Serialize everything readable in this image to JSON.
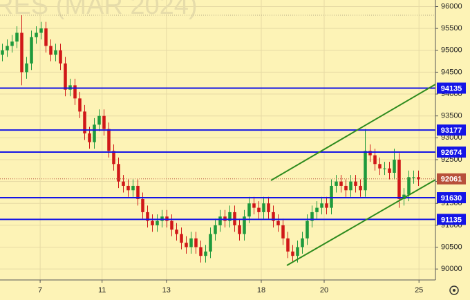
{
  "chart_data": {
    "type": "candlestick",
    "watermark": "RES (MAR 2024)",
    "xlim": [
      0,
      90
    ],
    "xticks": [
      {
        "value": 8.3,
        "label": "7"
      },
      {
        "value": 21.1,
        "label": "11"
      },
      {
        "value": 34.4,
        "label": "13"
      },
      {
        "value": 54,
        "label": "18"
      },
      {
        "value": 67,
        "label": "20"
      },
      {
        "value": 86.6,
        "label": "25"
      }
    ],
    "ylim": [
      89750,
      96150
    ],
    "yticks": [
      90000,
      90500,
      91000,
      91500,
      92000,
      92500,
      93000,
      93500,
      94000,
      94500,
      95000,
      95500,
      96000
    ],
    "grid": true,
    "up_color": "#1e9a3c",
    "down_color": "#d01818",
    "level_color": "#1414e6",
    "last_color": "#b8503a",
    "levels": [
      94135,
      93177,
      92674,
      91630,
      91135
    ],
    "last_price": 92061,
    "open": [
      94900,
      95000,
      95100,
      95200,
      95400,
      94500,
      94700,
      95300,
      95400,
      95500,
      95100,
      94900,
      95000,
      94700,
      94100,
      94200,
      93900,
      93600,
      93100,
      92900,
      93300,
      93500,
      93200,
      92700,
      92400,
      92000,
      91900,
      91800,
      91900,
      91600,
      91300,
      91100,
      91000,
      91100,
      91200,
      91100,
      90900,
      90800,
      90600,
      90500,
      90700,
      90500,
      90300,
      90400,
      90800,
      91000,
      91200,
      91100,
      91300,
      91000,
      90800,
      91200,
      91500,
      91400,
      91300,
      91500,
      91300,
      91100,
      91000,
      90700,
      90400,
      90300,
      90500,
      90700,
      91100,
      91300,
      91400,
      91500,
      91400,
      91900,
      92000,
      91900,
      91800,
      92000,
      91900,
      91800,
      92700,
      92600,
      92400,
      92300,
      92300,
      92200,
      92500,
      91600,
      91700,
      92100,
      92100
    ],
    "high": [
      95150,
      95250,
      95350,
      95550,
      95800,
      94850,
      95450,
      95550,
      95650,
      95650,
      95250,
      95150,
      95150,
      94850,
      94350,
      94350,
      94050,
      93750,
      93250,
      93450,
      93650,
      93650,
      93350,
      92850,
      92550,
      92150,
      92050,
      92050,
      92050,
      91750,
      91450,
      91250,
      91250,
      91350,
      91350,
      91250,
      91050,
      90950,
      90750,
      90850,
      90850,
      90650,
      90550,
      90950,
      91150,
      91350,
      91350,
      91450,
      91450,
      91150,
      91350,
      91650,
      91650,
      91550,
      91650,
      91650,
      91450,
      91250,
      91150,
      90850,
      90550,
      90650,
      90850,
      91250,
      91450,
      91550,
      91650,
      91650,
      92050,
      92150,
      92150,
      92050,
      92150,
      92150,
      92050,
      93200,
      92850,
      92750,
      92550,
      92450,
      92450,
      92750,
      92650,
      91850,
      92250,
      92250,
      92250
    ],
    "low": [
      94750,
      94850,
      94950,
      95050,
      94200,
      94350,
      94550,
      95150,
      95250,
      94950,
      94750,
      94750,
      94550,
      93950,
      93950,
      93750,
      93450,
      92950,
      92750,
      92750,
      93150,
      93050,
      92550,
      92250,
      91850,
      91750,
      91650,
      91650,
      91450,
      91150,
      90950,
      90850,
      90850,
      90950,
      90950,
      90750,
      90650,
      90450,
      90350,
      90350,
      90350,
      90150,
      90150,
      90250,
      90650,
      90850,
      90950,
      90950,
      90850,
      90650,
      90650,
      91050,
      91250,
      91150,
      91150,
      91150,
      90950,
      90850,
      90550,
      90250,
      90150,
      90150,
      90350,
      90550,
      90950,
      91150,
      91250,
      91250,
      91250,
      91750,
      91750,
      91650,
      91650,
      91750,
      91650,
      91650,
      92450,
      92250,
      92150,
      92150,
      92050,
      92050,
      91400,
      91450,
      91550,
      91950,
      91900
    ],
    "close": [
      95000,
      95100,
      95200,
      95400,
      94500,
      94700,
      95300,
      95400,
      95500,
      95100,
      94900,
      95000,
      94700,
      94100,
      94200,
      93900,
      93600,
      93100,
      92900,
      93300,
      93500,
      93200,
      92700,
      92400,
      92000,
      91900,
      91800,
      91900,
      91600,
      91300,
      91100,
      91000,
      91100,
      91200,
      91100,
      90900,
      90800,
      90600,
      90500,
      90700,
      90500,
      90300,
      90400,
      90800,
      91000,
      91200,
      91100,
      91300,
      91000,
      90800,
      91200,
      91500,
      91400,
      91300,
      91500,
      91300,
      91100,
      91000,
      90700,
      90400,
      90300,
      90500,
      90700,
      91100,
      91300,
      91400,
      91500,
      91400,
      91900,
      92000,
      91900,
      91800,
      92000,
      91900,
      91800,
      92700,
      92600,
      92400,
      92300,
      92300,
      92200,
      92500,
      91600,
      91700,
      92100,
      92100,
      92050
    ]
  }
}
